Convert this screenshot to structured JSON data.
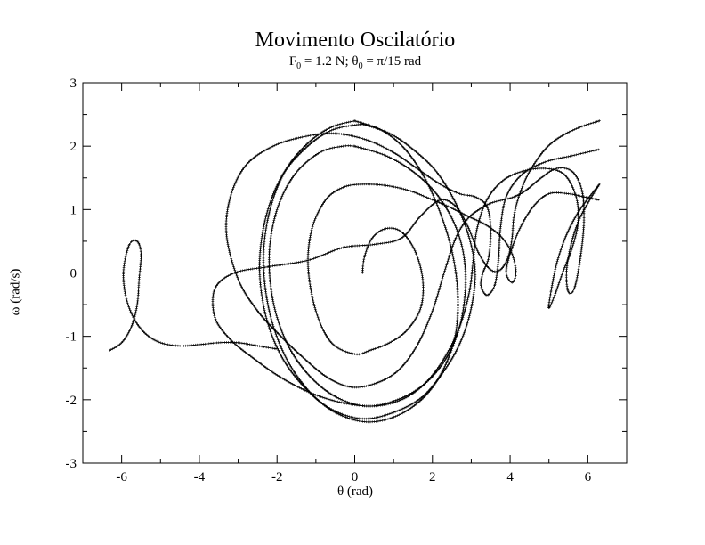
{
  "chart_data": {
    "type": "scatter",
    "title": "Movimento Oscilatório",
    "subtitle": {
      "f_symbol": "F",
      "f_sub": "0",
      "f_value": " = 1.2 N; ",
      "t_symbol": "θ",
      "t_sub": "0",
      "t_value": " = π/15 rad"
    },
    "xlabel": "θ (rad)",
    "ylabel": "ω (rad/s)",
    "xlim": [
      -7,
      7
    ],
    "ylim": [
      -3,
      3
    ],
    "xticks": [
      -6,
      -4,
      -2,
      0,
      2,
      4,
      6
    ],
    "yticks": [
      -3,
      -2,
      -1,
      0,
      1,
      2,
      3
    ],
    "grid": false,
    "series": [
      {
        "points": [
          [
            0.2,
            0.0
          ],
          [
            0.25,
            0.25
          ],
          [
            0.45,
            0.55
          ],
          [
            0.8,
            0.7
          ],
          [
            1.2,
            0.65
          ],
          [
            1.55,
            0.35
          ],
          [
            1.75,
            -0.1
          ],
          [
            1.7,
            -0.55
          ],
          [
            1.35,
            -0.9
          ],
          [
            0.9,
            -1.1
          ],
          [
            0.4,
            -1.22
          ],
          [
            0.0,
            -1.28
          ],
          [
            -0.6,
            -1.1
          ],
          [
            -1.0,
            -0.6
          ],
          [
            -1.2,
            0.1
          ],
          [
            -1.1,
            0.7
          ],
          [
            -0.75,
            1.15
          ],
          [
            -0.3,
            1.35
          ],
          [
            0.2,
            1.4
          ],
          [
            0.8,
            1.38
          ],
          [
            1.4,
            1.3
          ],
          [
            1.9,
            1.18
          ],
          [
            2.4,
            1.05
          ],
          [
            2.9,
            0.9
          ],
          [
            3.4,
            0.75
          ],
          [
            3.8,
            0.55
          ],
          [
            4.05,
            0.3
          ],
          [
            4.15,
            0.0
          ],
          [
            4.05,
            -0.15
          ],
          [
            3.9,
            0.0
          ],
          [
            4.0,
            0.3
          ],
          [
            4.25,
            0.7
          ],
          [
            4.6,
            1.05
          ],
          [
            5.0,
            1.25
          ],
          [
            5.5,
            1.25
          ],
          [
            5.9,
            1.2
          ],
          [
            6.3,
            1.15
          ]
        ]
      },
      {
        "points": [
          [
            6.3,
            1.4
          ],
          [
            6.0,
            1.1
          ],
          [
            5.75,
            0.8
          ],
          [
            5.55,
            0.4
          ],
          [
            5.45,
            0.0
          ],
          [
            5.5,
            -0.3
          ],
          [
            5.65,
            -0.25
          ],
          [
            5.8,
            0.2
          ],
          [
            5.9,
            0.8
          ],
          [
            5.85,
            1.3
          ],
          [
            5.6,
            1.6
          ],
          [
            5.2,
            1.65
          ],
          [
            4.8,
            1.5
          ],
          [
            4.4,
            1.3
          ],
          [
            4.1,
            1.2
          ],
          [
            3.8,
            1.15
          ],
          [
            3.5,
            1.1
          ],
          [
            3.2,
            1.0
          ],
          [
            2.9,
            0.85
          ],
          [
            2.6,
            0.55
          ],
          [
            2.3,
            0.0
          ],
          [
            2.0,
            -0.6
          ],
          [
            1.6,
            -1.15
          ],
          [
            1.1,
            -1.55
          ],
          [
            0.5,
            -1.75
          ],
          [
            -0.1,
            -1.8
          ],
          [
            -0.7,
            -1.65
          ],
          [
            -1.3,
            -1.35
          ],
          [
            -1.9,
            -1.0
          ],
          [
            -2.5,
            -0.6
          ],
          [
            -3.0,
            -0.1
          ],
          [
            -3.3,
            0.6
          ],
          [
            -3.2,
            1.2
          ],
          [
            -2.8,
            1.7
          ],
          [
            -2.1,
            2.0
          ],
          [
            -1.3,
            2.15
          ],
          [
            -0.5,
            2.2
          ],
          [
            0.3,
            2.1
          ],
          [
            1.0,
            1.9
          ],
          [
            1.6,
            1.65
          ],
          [
            2.2,
            1.4
          ],
          [
            2.7,
            1.25
          ],
          [
            3.1,
            1.2
          ],
          [
            3.4,
            1.05
          ],
          [
            3.5,
            0.7
          ],
          [
            3.45,
            0.25
          ],
          [
            3.3,
            0.0
          ],
          [
            3.25,
            -0.2
          ],
          [
            3.4,
            -0.35
          ],
          [
            3.6,
            -0.2
          ],
          [
            3.7,
            0.2
          ],
          [
            3.75,
            0.7
          ],
          [
            3.9,
            1.2
          ],
          [
            4.3,
            1.55
          ],
          [
            4.9,
            1.75
          ],
          [
            5.6,
            1.85
          ],
          [
            6.3,
            1.95
          ]
        ]
      },
      {
        "points": [
          [
            6.3,
            2.4
          ],
          [
            5.8,
            2.3
          ],
          [
            5.3,
            2.15
          ],
          [
            4.9,
            1.95
          ],
          [
            4.5,
            1.6
          ],
          [
            4.25,
            1.25
          ],
          [
            4.1,
            0.9
          ],
          [
            4.05,
            0.55
          ],
          [
            3.95,
            0.25
          ],
          [
            3.75,
            0.05
          ],
          [
            3.5,
            0.05
          ],
          [
            3.2,
            0.3
          ],
          [
            2.9,
            0.75
          ],
          [
            2.6,
            1.05
          ],
          [
            2.2,
            1.15
          ],
          [
            1.7,
            0.9
          ],
          [
            1.2,
            0.55
          ],
          [
            0.5,
            0.45
          ],
          [
            -0.3,
            0.4
          ],
          [
            -1.2,
            0.2
          ],
          [
            -2.2,
            0.1
          ],
          [
            -3.1,
            0.0
          ],
          [
            -3.6,
            -0.25
          ],
          [
            -3.6,
            -0.7
          ],
          [
            -3.2,
            -1.05
          ],
          [
            -2.6,
            -1.35
          ],
          [
            -1.9,
            -1.65
          ],
          [
            -1.1,
            -1.9
          ],
          [
            -0.3,
            -2.05
          ],
          [
            0.5,
            -2.1
          ],
          [
            1.2,
            -2.0
          ],
          [
            1.8,
            -1.75
          ],
          [
            2.3,
            -1.35
          ],
          [
            2.7,
            -0.85
          ],
          [
            2.95,
            -0.3
          ],
          [
            3.05,
            0.2
          ],
          [
            3.15,
            0.7
          ],
          [
            3.4,
            1.15
          ],
          [
            3.8,
            1.45
          ],
          [
            4.3,
            1.6
          ],
          [
            4.9,
            1.65
          ],
          [
            5.4,
            1.55
          ],
          [
            5.7,
            1.2
          ],
          [
            5.75,
            0.8
          ],
          [
            5.6,
            0.4
          ],
          [
            5.35,
            0.0
          ],
          [
            5.15,
            -0.35
          ],
          [
            5.0,
            -0.55
          ],
          [
            5.05,
            -0.3
          ],
          [
            5.2,
            0.15
          ],
          [
            5.45,
            0.6
          ],
          [
            5.8,
            1.0
          ],
          [
            6.3,
            1.4
          ]
        ]
      },
      {
        "points": [
          [
            0.0,
            2.4
          ],
          [
            0.7,
            2.25
          ],
          [
            1.3,
            1.95
          ],
          [
            1.8,
            1.5
          ],
          [
            2.2,
            0.95
          ],
          [
            2.5,
            0.35
          ],
          [
            2.65,
            -0.3
          ],
          [
            2.6,
            -0.95
          ],
          [
            2.3,
            -1.5
          ],
          [
            1.8,
            -1.95
          ],
          [
            1.1,
            -2.25
          ],
          [
            0.3,
            -2.35
          ],
          [
            -0.5,
            -2.2
          ],
          [
            -1.2,
            -1.85
          ],
          [
            -1.8,
            -1.3
          ],
          [
            -2.2,
            -0.6
          ],
          [
            -2.35,
            0.2
          ],
          [
            -2.2,
            0.95
          ],
          [
            -1.8,
            1.6
          ],
          [
            -1.2,
            2.05
          ],
          [
            -0.6,
            2.3
          ],
          [
            0.0,
            2.4
          ]
        ]
      },
      {
        "points": [
          [
            0.2,
            2.35
          ],
          [
            0.9,
            2.2
          ],
          [
            1.5,
            1.95
          ],
          [
            2.1,
            1.6
          ],
          [
            2.6,
            1.1
          ],
          [
            2.95,
            0.55
          ],
          [
            3.1,
            0.0
          ],
          [
            3.0,
            -0.55
          ],
          [
            2.75,
            -1.05
          ],
          [
            2.35,
            -1.5
          ],
          [
            1.75,
            -1.95
          ],
          [
            1.0,
            -2.2
          ],
          [
            0.2,
            -2.3
          ],
          [
            -0.6,
            -2.15
          ],
          [
            -1.3,
            -1.8
          ],
          [
            -1.9,
            -1.3
          ],
          [
            -2.3,
            -0.65
          ],
          [
            -2.45,
            0.1
          ],
          [
            -2.3,
            0.85
          ],
          [
            -1.9,
            1.5
          ],
          [
            -1.3,
            1.95
          ],
          [
            -0.6,
            2.25
          ],
          [
            0.2,
            2.35
          ]
        ]
      },
      {
        "points": [
          [
            0.0,
            2.0
          ],
          [
            0.8,
            1.85
          ],
          [
            1.5,
            1.6
          ],
          [
            2.1,
            1.25
          ],
          [
            2.55,
            0.8
          ],
          [
            2.8,
            0.3
          ],
          [
            2.85,
            -0.25
          ],
          [
            2.7,
            -0.85
          ],
          [
            2.35,
            -1.35
          ],
          [
            1.8,
            -1.75
          ],
          [
            1.1,
            -2.0
          ],
          [
            0.3,
            -2.1
          ],
          [
            -0.5,
            -1.95
          ],
          [
            -1.2,
            -1.6
          ],
          [
            -1.75,
            -1.1
          ],
          [
            -2.1,
            -0.45
          ],
          [
            -2.2,
            0.3
          ],
          [
            -2.0,
            1.0
          ],
          [
            -1.55,
            1.55
          ],
          [
            -0.9,
            1.9
          ],
          [
            -0.3,
            2.0
          ],
          [
            0.0,
            2.0
          ]
        ]
      },
      {
        "points": [
          [
            -6.3,
            -1.22
          ],
          [
            -6.0,
            -1.1
          ],
          [
            -5.75,
            -0.85
          ],
          [
            -5.6,
            -0.5
          ],
          [
            -5.55,
            -0.1
          ],
          [
            -5.5,
            0.3
          ],
          [
            -5.6,
            0.5
          ],
          [
            -5.8,
            0.45
          ],
          [
            -5.95,
            0.05
          ],
          [
            -5.9,
            -0.35
          ],
          [
            -5.7,
            -0.7
          ],
          [
            -5.4,
            -0.95
          ],
          [
            -5.0,
            -1.1
          ],
          [
            -4.5,
            -1.15
          ],
          [
            -4.0,
            -1.13
          ],
          [
            -3.5,
            -1.1
          ],
          [
            -3.0,
            -1.1
          ],
          [
            -2.5,
            -1.15
          ],
          [
            -2.0,
            -1.2
          ]
        ]
      }
    ]
  }
}
